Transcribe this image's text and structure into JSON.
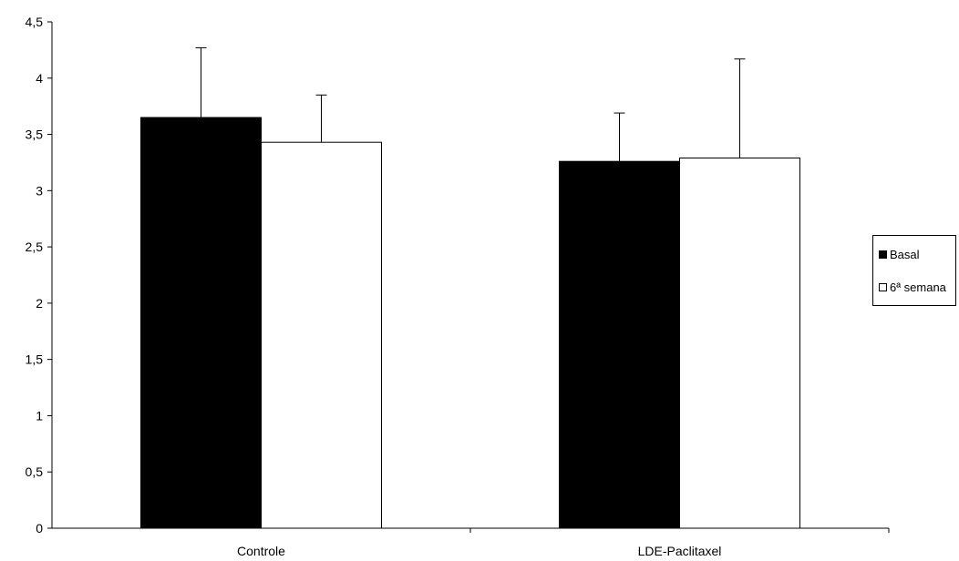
{
  "chart_data": {
    "type": "bar",
    "categories": [
      "Controle",
      "LDE-Paclitaxel"
    ],
    "series": [
      {
        "name": "Basal",
        "values": [
          3.65,
          3.26
        ],
        "errors": [
          0.62,
          0.43
        ],
        "color": "#000000"
      },
      {
        "name": "6ª semana",
        "values": [
          3.43,
          3.29
        ],
        "errors": [
          0.42,
          0.88
        ],
        "color": "#ffffff"
      }
    ],
    "yticks": [
      "0",
      "0,5",
      "1",
      "1,5",
      "2",
      "2,5",
      "3",
      "3,5",
      "4",
      "4,5"
    ],
    "ylim": [
      0,
      4.5
    ],
    "title": "",
    "xlabel": "",
    "ylabel": "",
    "grid": false,
    "legend_position": "right"
  }
}
